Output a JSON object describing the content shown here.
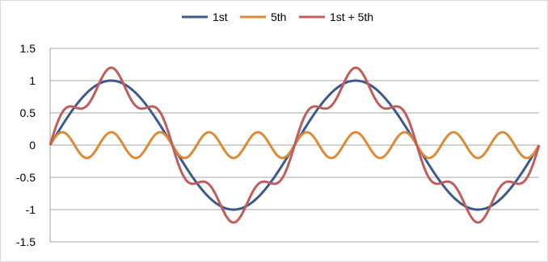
{
  "chart_data": {
    "type": "line",
    "title": "",
    "xlabel": "",
    "ylabel": "",
    "x_range": [
      0,
      720
    ],
    "ylim": [
      -1.5,
      1.5
    ],
    "y_ticks": [
      1.5,
      1,
      0.5,
      0,
      -0.5,
      -1,
      -1.5
    ],
    "y_tick_labels": [
      "1.5",
      "1",
      "0.5",
      "0",
      "-0.5",
      "-1",
      "-1.5"
    ],
    "grid": "horizontal",
    "legend_position": "top",
    "series": [
      {
        "name": "1st",
        "color": "#3c5a8c",
        "harmonic": 1,
        "amplitude": 1.0
      },
      {
        "name": "5th",
        "color": "#dc8a35",
        "harmonic": 5,
        "amplitude": 0.2
      },
      {
        "name": "1st + 5th",
        "color": "#bf5c5c",
        "components": [
          "1st",
          "5th"
        ]
      }
    ]
  }
}
